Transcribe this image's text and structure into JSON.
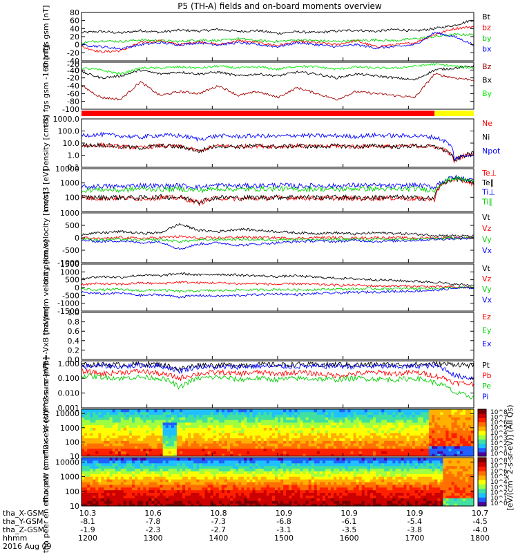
{
  "title": "P5 (TH-A) fields and on-board moments overview",
  "chart_data": [
    {
      "type": "line",
      "ylabel": "tha fgs gsm [nT]",
      "ylim": [
        -40,
        80
      ],
      "ticks": [
        "80",
        "60",
        "40",
        "20",
        "0",
        "-20",
        "-40"
      ],
      "ticks_extra": [
        "-20",
        "-40"
      ],
      "legend_placement": "right",
      "series": [
        {
          "name": "Bt",
          "color": "#000000",
          "values": [
            30,
            33,
            29,
            35,
            31,
            36,
            34,
            38,
            33,
            35,
            28,
            32,
            30,
            34,
            36,
            33,
            38,
            34,
            40,
            48,
            62
          ]
        },
        {
          "name": "bz",
          "color": "#ff0000",
          "values": [
            -5,
            -18,
            -15,
            5,
            10,
            0,
            8,
            0,
            10,
            5,
            -2,
            8,
            5,
            0,
            10,
            -5,
            0,
            5,
            25,
            40,
            45
          ]
        },
        {
          "name": "by",
          "color": "#00d000",
          "values": [
            5,
            10,
            8,
            12,
            10,
            8,
            12,
            10,
            15,
            10,
            8,
            12,
            10,
            8,
            10,
            12,
            10,
            15,
            20,
            25,
            25
          ]
        },
        {
          "name": "bx",
          "color": "#0000ff",
          "values": [
            0,
            -5,
            -10,
            0,
            5,
            0,
            5,
            0,
            5,
            0,
            -5,
            5,
            0,
            -5,
            0,
            -8,
            -5,
            0,
            30,
            20,
            0
          ]
        }
      ]
    },
    {
      "type": "line",
      "ylabel": "tha fgs gsm -160 [nT]",
      "ylim": [
        -100,
        20
      ],
      "ticks": [
        "0",
        "-20",
        "-40",
        "-60",
        "-80",
        "-100"
      ],
      "legend_placement": "right",
      "series": [
        {
          "name": "Bz",
          "color": "#a00000",
          "values": [
            -40,
            -70,
            -75,
            -30,
            -65,
            -55,
            -60,
            -40,
            -65,
            -55,
            -70,
            -45,
            -60,
            -75,
            -55,
            -60,
            -65,
            -70,
            -10,
            -20,
            -25
          ]
        },
        {
          "name": "Bx",
          "color": "#000000",
          "values": [
            -5,
            -20,
            -15,
            0,
            -10,
            -5,
            -10,
            -5,
            -15,
            -10,
            -15,
            -5,
            -10,
            -20,
            -10,
            -15,
            -20,
            -25,
            0,
            5,
            10
          ]
        },
        {
          "name": "By",
          "color": "#00ee00",
          "values": [
            5,
            0,
            -10,
            5,
            5,
            8,
            5,
            10,
            5,
            8,
            2,
            10,
            8,
            2,
            8,
            5,
            5,
            10,
            15,
            10,
            5
          ]
        }
      ]
    },
    {
      "type": "line",
      "ylabel": "Density [cm-3]",
      "yscale": "log",
      "ylim": [
        0.1,
        1000
      ],
      "ticks": [
        "1000.0",
        "100.0",
        "10.0",
        "1.0",
        "0.1"
      ],
      "legend_placement": "right",
      "series": [
        {
          "name": "Ne",
          "color": "#ff0000",
          "values": [
            6,
            7,
            5,
            4,
            6,
            5,
            2,
            6,
            5,
            6,
            5,
            6,
            5,
            6,
            5,
            6,
            5,
            6,
            5,
            0.3,
            1.5
          ]
        },
        {
          "name": "Ni",
          "color": "#000000",
          "values": [
            6,
            7,
            5,
            4,
            6,
            5,
            2,
            6,
            5,
            6,
            5,
            6,
            5,
            6,
            5,
            6,
            5,
            6,
            5,
            0.3,
            1.5
          ]
        },
        {
          "name": "Npot",
          "color": "#0000ff",
          "values": [
            45,
            50,
            40,
            30,
            45,
            40,
            20,
            40,
            35,
            40,
            35,
            45,
            40,
            40,
            35,
            45,
            40,
            40,
            30,
            0.5,
            1.2
          ]
        }
      ]
    },
    {
      "type": "line",
      "ylabel": "moat3 [eV]",
      "yscale": "log",
      "ylim": [
        10,
        10000
      ],
      "ticks": [
        "10000",
        "1000",
        "100"
      ],
      "legend_placement": "right",
      "series": [
        {
          "name": "Te⊥",
          "color": "#ff0000",
          "values": [
            90,
            85,
            90,
            80,
            95,
            90,
            40,
            90,
            80,
            85,
            90,
            95,
            85,
            90,
            80,
            85,
            90,
            80,
            70,
            1800,
            900
          ]
        },
        {
          "name": "Te∥",
          "color": "#000000",
          "values": [
            100,
            95,
            100,
            90,
            105,
            100,
            50,
            100,
            90,
            95,
            100,
            105,
            95,
            100,
            90,
            95,
            100,
            90,
            80,
            2000,
            1000
          ]
        },
        {
          "name": "Ti⊥",
          "color": "#0000ff",
          "values": [
            500,
            600,
            550,
            700,
            600,
            650,
            500,
            700,
            600,
            650,
            700,
            600,
            650,
            600,
            700,
            650,
            600,
            700,
            500,
            2500,
            1500
          ]
        },
        {
          "name": "Ti∥",
          "color": "#00d000",
          "values": [
            300,
            350,
            300,
            400,
            350,
            380,
            300,
            400,
            350,
            380,
            400,
            350,
            380,
            350,
            400,
            380,
            350,
            400,
            300,
            2200,
            1200
          ]
        }
      ]
    },
    {
      "type": "line",
      "ylabel": "tha peim velocity [km/s]",
      "ylim": [
        -1000,
        1000
      ],
      "ticks": [
        "1000",
        "500",
        "0",
        "-500",
        "-1000"
      ],
      "legend_placement": "right",
      "series": [
        {
          "name": "Vt",
          "color": "#000000",
          "values": [
            150,
            200,
            250,
            180,
            200,
            550,
            300,
            250,
            350,
            300,
            250,
            200,
            180,
            200,
            150,
            200,
            180,
            150,
            100,
            80,
            60
          ]
        },
        {
          "name": "Vz",
          "color": "#ff0000",
          "values": [
            0,
            -50,
            20,
            -30,
            10,
            50,
            -20,
            0,
            30,
            10,
            0,
            -20,
            10,
            0,
            -10,
            10,
            0,
            -10,
            0,
            0,
            0
          ]
        },
        {
          "name": "Vy",
          "color": "#00d000",
          "values": [
            -50,
            -80,
            -60,
            -100,
            -70,
            -150,
            -90,
            -70,
            -60,
            -80,
            -70,
            -60,
            -80,
            -70,
            -60,
            -70,
            -60,
            -50,
            -40,
            -10,
            0
          ]
        },
        {
          "name": "Vx",
          "color": "#0000ff",
          "values": [
            -100,
            -150,
            -120,
            -200,
            -150,
            -450,
            -250,
            -200,
            -300,
            -250,
            -200,
            -150,
            -120,
            -150,
            -100,
            -150,
            -120,
            -100,
            -60,
            -30,
            -20
          ]
        }
      ]
    },
    {
      "type": "line",
      "ylabel": "tha peem velocity [km/s]",
      "ylim": [
        -1500,
        1500
      ],
      "ticks": [
        "1500",
        "1000",
        "500",
        "0",
        "-500",
        "-1000",
        "-1500"
      ],
      "legend_placement": "right",
      "series": [
        {
          "name": "Vt",
          "color": "#000000",
          "values": [
            600,
            700,
            650,
            800,
            750,
            900,
            800,
            850,
            800,
            750,
            700,
            750,
            650,
            600,
            550,
            500,
            450,
            400,
            350,
            200,
            150
          ]
        },
        {
          "name": "Vz",
          "color": "#ff0000",
          "values": [
            200,
            250,
            200,
            300,
            250,
            350,
            300,
            300,
            250,
            250,
            200,
            250,
            200,
            150,
            150,
            100,
            100,
            80,
            60,
            20,
            10
          ]
        },
        {
          "name": "Vy",
          "color": "#00d000",
          "values": [
            -100,
            -150,
            -120,
            -200,
            -150,
            -250,
            -200,
            -200,
            -150,
            -150,
            -120,
            -150,
            -120,
            -100,
            -90,
            -80,
            -70,
            -60,
            -50,
            -10,
            0
          ]
        },
        {
          "name": "Vx",
          "color": "#0000ff",
          "values": [
            -300,
            -400,
            -350,
            -500,
            -450,
            -600,
            -500,
            -550,
            -500,
            -450,
            -400,
            -450,
            -380,
            -350,
            -300,
            -280,
            -250,
            -220,
            -180,
            -50,
            -20
          ]
        }
      ]
    },
    {
      "type": "line",
      "ylabel": "E=-VxB [mV/m]",
      "ylim": [
        0,
        1
      ],
      "ticks": [
        "1.0",
        "0.8",
        "0.6",
        "0.4",
        "0.2",
        "0.0"
      ],
      "legend_placement": "right",
      "series": [
        {
          "name": "Ez",
          "color": "#ff0000",
          "values": []
        },
        {
          "name": "Ey",
          "color": "#00d000",
          "values": []
        },
        {
          "name": "Ex",
          "color": "#0000ff",
          "values": []
        }
      ]
    },
    {
      "type": "line",
      "ylabel": "Pressure [nPa]",
      "yscale": "log",
      "ylim": [
        0.001,
        1.5
      ],
      "ticks": [
        "1.000",
        "0.100",
        "0.010",
        "0.001"
      ],
      "legend_placement": "right",
      "series": [
        {
          "name": "Pt",
          "color": "#000000",
          "values": [
            0.8,
            0.85,
            0.8,
            0.9,
            0.85,
            0.4,
            0.8,
            0.75,
            0.8,
            0.85,
            0.8,
            0.85,
            0.8,
            0.85,
            0.8,
            0.85,
            0.8,
            0.85,
            0.9,
            0.9,
            0.7
          ]
        },
        {
          "name": "Pb",
          "color": "#ff0000",
          "values": [
            0.3,
            0.2,
            0.25,
            0.3,
            0.2,
            0.1,
            0.2,
            0.25,
            0.2,
            0.25,
            0.2,
            0.25,
            0.2,
            0.15,
            0.2,
            0.25,
            0.2,
            0.25,
            0.15,
            0.05,
            0.04
          ]
        },
        {
          "name": "Pe",
          "color": "#00d000",
          "values": [
            0.15,
            0.12,
            0.1,
            0.12,
            0.1,
            0.02,
            0.1,
            0.12,
            0.08,
            0.1,
            0.08,
            0.1,
            0.09,
            0.08,
            0.1,
            0.09,
            0.08,
            0.1,
            0.05,
            0.01,
            0.005
          ]
        },
        {
          "name": "Pi",
          "color": "#0000ff",
          "values": [
            0.6,
            0.7,
            0.6,
            0.75,
            0.7,
            0.3,
            0.6,
            0.55,
            0.6,
            0.65,
            0.6,
            0.65,
            0.6,
            0.7,
            0.6,
            0.65,
            0.6,
            0.65,
            0.7,
            0.15,
            0.1
          ]
        }
      ]
    },
    {
      "type": "heatmap",
      "ylabel": "tha peir en eflux eV/ (cm^2-s- sr-eV)",
      "yscale": "log",
      "ylim": [
        10,
        20000
      ],
      "ticks": [
        "10000",
        "1000",
        "100",
        "10"
      ],
      "colorbar_label": "[eV/(cm^2-s-sr-eV)] (All Qs)",
      "colorbar_ticks": [
        "10^8",
        "10^7",
        "10^6",
        "10^5",
        "10^4",
        "10^3",
        "10^2",
        "10^1",
        "10^0"
      ]
    },
    {
      "type": "heatmap",
      "ylabel": "tha peer en eflux eV/ (cm^2-s- sr-eV)",
      "yscale": "log",
      "ylim": [
        10,
        20000
      ],
      "ticks": [
        "10000",
        "1000",
        "100",
        "10"
      ],
      "colorbar_label": "[eV/(cm^2-s-sr-eV)] (All Qs)",
      "colorbar_ticks": [
        "10^8",
        "10^7",
        "10^6",
        "10^5",
        "10^4",
        "10^3",
        "10^2",
        "10^1",
        "10^0"
      ]
    }
  ],
  "x_axis": {
    "rows": [
      {
        "label": "tha_X-GSM",
        "values": [
          "10.3",
          "10.6",
          "10.8",
          "10.9",
          "10.9",
          "10.9",
          "10.7"
        ]
      },
      {
        "label": "tha_Y-GSM",
        "values": [
          "-8.1",
          "-7.8",
          "-7.3",
          "-6.8",
          "-6.1",
          "-5.4",
          "-4.5"
        ]
      },
      {
        "label": "tha_Z-GSM",
        "values": [
          "-1.9",
          "-2.3",
          "-2.7",
          "-3.1",
          "-3.5",
          "-3.8",
          "-4.0"
        ]
      },
      {
        "label": "hhmm",
        "values": [
          "1200",
          "1300",
          "1400",
          "1500",
          "1600",
          "1700",
          "1800"
        ]
      }
    ],
    "date": "2016 Aug 09",
    "range": [
      1200,
      1800
    ]
  },
  "status_bar": {
    "colors": [
      "#ff0000",
      "#ffff00"
    ],
    "split_hhmm": 1740
  }
}
